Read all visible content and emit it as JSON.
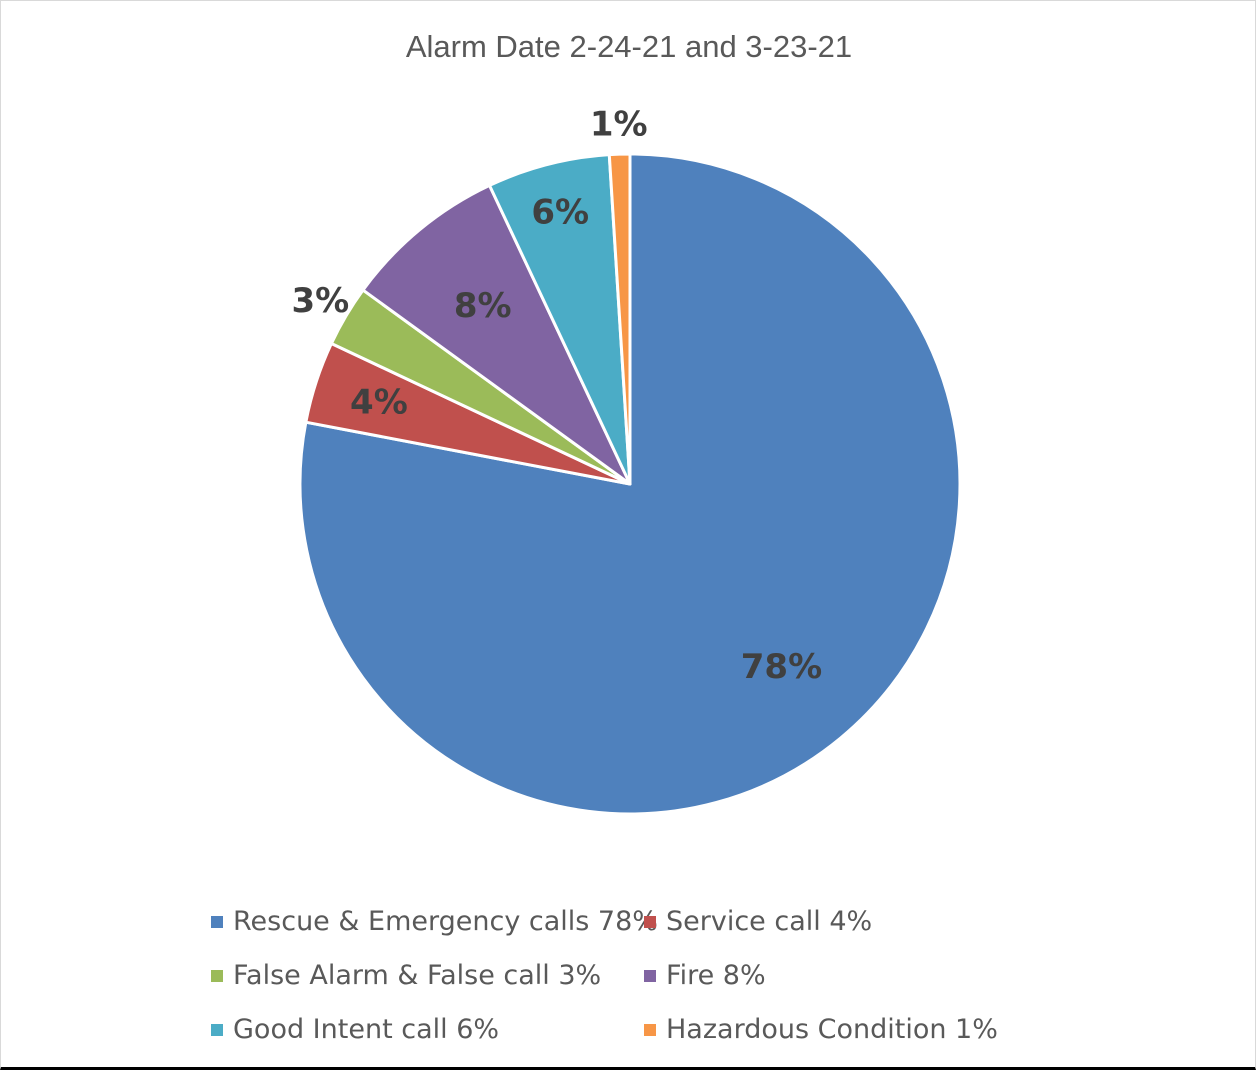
{
  "chart_data": {
    "type": "pie",
    "title": "Alarm Date 2-24-21 and 3-23-21",
    "slices": [
      {
        "label": "Rescue & Emergency calls 78%",
        "value": 78,
        "data_label": "78%",
        "color": "#4F81BD"
      },
      {
        "label": "Service call 4%",
        "value": 4,
        "data_label": "4%",
        "color": "#C0504D"
      },
      {
        "label": "False Alarm & False call 3%",
        "value": 3,
        "data_label": "3%",
        "color": "#9BBB59"
      },
      {
        "label": "Fire 8%",
        "value": 8,
        "data_label": "8%",
        "color": "#8064A2"
      },
      {
        "label": "Good Intent call 6%",
        "value": 6,
        "data_label": "6%",
        "color": "#4BACC6"
      },
      {
        "label": "Hazardous Condition 1%",
        "value": 1,
        "data_label": "1%",
        "color": "#F79646"
      }
    ],
    "legend_position": "bottom"
  }
}
